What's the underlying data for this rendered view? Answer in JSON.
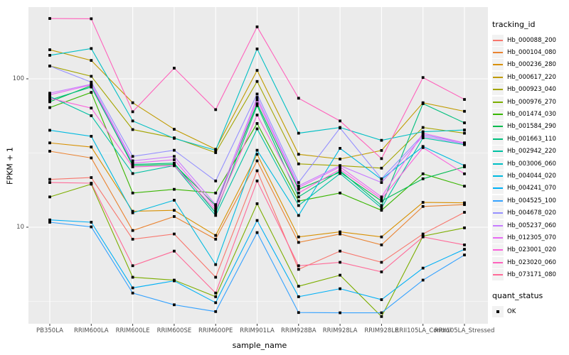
{
  "figure": {
    "panel_background": "#ebebeb",
    "gridline_color": "#ffffff",
    "point_color": "#000000",
    "axis_text_color": "#4d4d4d",
    "tick_color": "#333333"
  },
  "axes": {
    "x": {
      "title": "sample_name"
    },
    "y": {
      "title": "FPKM + 1",
      "ticks": [
        "100",
        "10"
      ],
      "tick_values": [
        100,
        10
      ],
      "scale": "log10"
    }
  },
  "legend": {
    "tracking": {
      "title": "tracking_id",
      "items": [
        {
          "label": "Hb_000088_200",
          "color": "#F8766D"
        },
        {
          "label": "Hb_000104_080",
          "color": "#EA8331"
        },
        {
          "label": "Hb_000236_280",
          "color": "#D89000"
        },
        {
          "label": "Hb_000617_220",
          "color": "#C09B00"
        },
        {
          "label": "Hb_000923_040",
          "color": "#A3A500"
        },
        {
          "label": "Hb_000976_270",
          "color": "#7CAE00"
        },
        {
          "label": "Hb_001474_030",
          "color": "#39B600"
        },
        {
          "label": "Hb_001584_290",
          "color": "#00BB4E"
        },
        {
          "label": "Hb_001663_110",
          "color": "#00BF7D"
        },
        {
          "label": "Hb_002942_220",
          "color": "#00C1A3"
        },
        {
          "label": "Hb_003006_060",
          "color": "#00BFC4"
        },
        {
          "label": "Hb_004044_020",
          "color": "#00BAE0"
        },
        {
          "label": "Hb_004241_070",
          "color": "#00B0F6"
        },
        {
          "label": "Hb_004525_100",
          "color": "#35A2FF"
        },
        {
          "label": "Hb_004678_020",
          "color": "#9590FF"
        },
        {
          "label": "Hb_005237_060",
          "color": "#C77CFF"
        },
        {
          "label": "Hb_012305_070",
          "color": "#E76BF3"
        },
        {
          "label": "Hb_023001_020",
          "color": "#FA62DB"
        },
        {
          "label": "Hb_023020_060",
          "color": "#FF62BC"
        },
        {
          "label": "Hb_073171_080",
          "color": "#FF6A98"
        }
      ]
    },
    "quant": {
      "title": "quant_status",
      "items": [
        {
          "label": "OK",
          "shape": "square",
          "color": "#000000"
        }
      ]
    }
  },
  "chart_data": {
    "type": "line",
    "title": "",
    "xlabel": "sample_name",
    "ylabel": "FPKM + 1",
    "y_scale": "log10",
    "y_domain": [
      2.5,
      260
    ],
    "y_major_gridlines": [
      10,
      100
    ],
    "y_minor_gridlines": [
      3.162,
      31.62
    ],
    "grid": true,
    "legend_position": "right",
    "point_marker": "filled-black-square",
    "quant_status": "OK",
    "categories": [
      "PB350LA",
      "RRIM600LA",
      "RRIM600LE",
      "RRIM600SE",
      "RRIM600PE",
      "RRIM901LA",
      "RRIM928BA",
      "RRIM928LA",
      "RRIM928LE",
      "RRII105LA_Control",
      "RRII105LA_Stressed"
    ],
    "series": [
      {
        "name": "Hb_000088_200",
        "color": "#F8766D",
        "values": [
          21,
          21.6,
          8.3,
          9.0,
          4.6,
          24,
          5.2,
          6.9,
          5.8,
          9.0,
          12.6
        ]
      },
      {
        "name": "Hb_000104_080",
        "color": "#EA8331",
        "values": [
          32.5,
          29.3,
          9.5,
          11.8,
          8.3,
          28,
          7.9,
          9.0,
          7.6,
          13.8,
          14.2
        ]
      },
      {
        "name": "Hb_000236_280",
        "color": "#D89000",
        "values": [
          37,
          34.7,
          12.8,
          13.0,
          8.8,
          31,
          8.6,
          9.3,
          8.6,
          14.7,
          14.6
        ]
      },
      {
        "name": "Hb_000617_220",
        "color": "#C09B00",
        "values": [
          157,
          133,
          69,
          45.7,
          33.5,
          114,
          31,
          28.8,
          32.9,
          69,
          60.4
        ]
      },
      {
        "name": "Hb_000923_040",
        "color": "#A3A500",
        "values": [
          122,
          104,
          45.5,
          40,
          31.8,
          96,
          26.7,
          26,
          25,
          47,
          43
        ]
      },
      {
        "name": "Hb_000976_270",
        "color": "#7CAE00",
        "values": [
          16,
          19.5,
          4.6,
          4.4,
          3.4,
          14.4,
          4.0,
          4.75,
          2.5,
          8.7,
          9.9
        ]
      },
      {
        "name": "Hb_001474_030",
        "color": "#39B600",
        "values": [
          64,
          81,
          17,
          18,
          17,
          50,
          15,
          17,
          13,
          22.9,
          18.9
        ]
      },
      {
        "name": "Hb_001584_290",
        "color": "#00BB4E",
        "values": [
          70,
          90,
          26,
          26.5,
          14,
          68,
          18,
          23.5,
          15,
          21.2,
          25.5
        ]
      },
      {
        "name": "Hb_001663_110",
        "color": "#00BF7D",
        "values": [
          72,
          88,
          26.5,
          27,
          12.5,
          66,
          16,
          24,
          14,
          68,
          50.5
        ]
      },
      {
        "name": "Hb_002942_220",
        "color": "#00C1A3",
        "values": [
          76,
          56.4,
          23,
          26,
          12,
          46,
          14,
          23,
          13.5,
          40,
          36
        ]
      },
      {
        "name": "Hb_003006_060",
        "color": "#00BFC4",
        "values": [
          144,
          160,
          52,
          39.7,
          33,
          159,
          43,
          47,
          38.5,
          44,
          45.2
        ]
      },
      {
        "name": "Hb_004044_020",
        "color": "#00BAE0",
        "values": [
          45,
          41,
          12.5,
          15.2,
          5.6,
          33,
          12,
          34,
          21,
          35,
          26
        ]
      },
      {
        "name": "Hb_004241_070",
        "color": "#00B0F6",
        "values": [
          11.2,
          10.8,
          3.9,
          4.35,
          3.1,
          11.1,
          3.4,
          3.85,
          3.25,
          5.3,
          7.1
        ]
      },
      {
        "name": "Hb_004525_100",
        "color": "#35A2FF",
        "values": [
          10.8,
          10.05,
          3.6,
          3.0,
          2.7,
          9.2,
          2.66,
          2.65,
          2.65,
          4.4,
          6.5
        ]
      },
      {
        "name": "Hb_004678_020",
        "color": "#9590FF",
        "values": [
          122,
          95,
          30,
          33,
          20.5,
          79,
          20,
          46.6,
          21.2,
          42,
          37
        ]
      },
      {
        "name": "Hb_005237_060",
        "color": "#C77CFF",
        "values": [
          80,
          92,
          28,
          30,
          14.2,
          75,
          19,
          26,
          20,
          41,
          36.5
        ]
      },
      {
        "name": "Hb_012305_070",
        "color": "#E76BF3",
        "values": [
          78,
          91,
          27,
          28.5,
          13.5,
          72,
          18.5,
          25.5,
          16,
          43,
          37
        ]
      },
      {
        "name": "Hb_023001_020",
        "color": "#FA62DB",
        "values": [
          74,
          63.5,
          25.5,
          26,
          13,
          57,
          17,
          24.5,
          15.5,
          34.4,
          22.9
        ]
      },
      {
        "name": "Hb_023020_060",
        "color": "#FF62BC",
        "values": [
          255,
          254,
          60,
          118,
          62,
          224,
          74,
          52,
          29,
          102,
          72.6
        ]
      },
      {
        "name": "Hb_073171_080",
        "color": "#FF6A98",
        "values": [
          20,
          19.8,
          5.5,
          6.9,
          3.6,
          20.5,
          5.5,
          5.8,
          5.0,
          8.6,
          7.6
        ]
      }
    ]
  }
}
